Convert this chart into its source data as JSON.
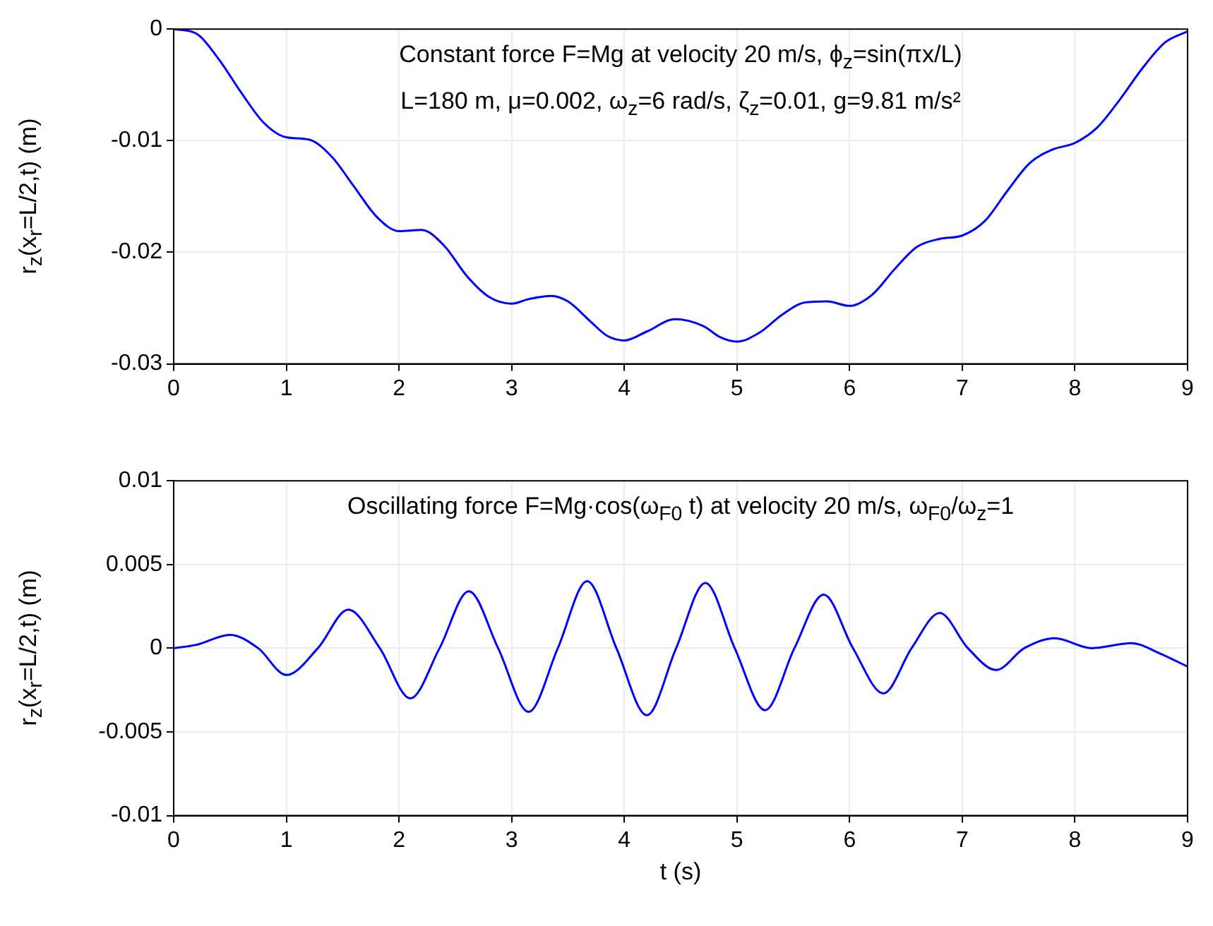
{
  "chart_data": [
    {
      "type": "line",
      "ylabel": "r$_{z}$(x$_{r}$=L/2,t) (m)",
      "annotations": [
        "Constant force F=Mg at velocity 20 m/s, ϕ$_{z}$=sin(πx/L)",
        "L=180 m, μ=0.002, ω$_{z}$=6 rad/s, ζ$_{z}$=0.01, g=9.81 m/s²"
      ],
      "xlim": [
        0,
        9
      ],
      "xticks": [
        0,
        1,
        2,
        3,
        4,
        5,
        6,
        7,
        8,
        9
      ],
      "ylim": [
        -0.03,
        0
      ],
      "yticks": [
        -0.03,
        -0.02,
        -0.01,
        0
      ],
      "grid": true,
      "series": [
        {
          "color": "#0000ff",
          "x": [
            0,
            0.2,
            0.4,
            0.6,
            0.8,
            1.0,
            1.2,
            1.4,
            1.6,
            1.8,
            2.0,
            2.2,
            2.4,
            2.6,
            2.8,
            3.0,
            3.15,
            3.35,
            3.5,
            3.7,
            3.85,
            4.0,
            4.2,
            4.45,
            4.7,
            4.85,
            5.0,
            5.2,
            5.4,
            5.6,
            5.8,
            6.0,
            6.2,
            6.4,
            6.6,
            6.8,
            7.0,
            7.2,
            7.4,
            7.6,
            7.8,
            8.0,
            8.2,
            8.4,
            8.6,
            8.8,
            9.0
          ],
          "values": [
            0,
            -0.0004,
            -0.0027,
            -0.0057,
            -0.0084,
            -0.0097,
            -0.0099,
            -0.0114,
            -0.0141,
            -0.0168,
            -0.0181,
            -0.018,
            -0.0194,
            -0.0221,
            -0.024,
            -0.0246,
            -0.0242,
            -0.0239,
            -0.0244,
            -0.0262,
            -0.0275,
            -0.0279,
            -0.0271,
            -0.026,
            -0.0266,
            -0.0276,
            -0.028,
            -0.0272,
            -0.0256,
            -0.0245,
            -0.0244,
            -0.0248,
            -0.0238,
            -0.0215,
            -0.0195,
            -0.0188,
            -0.0185,
            -0.0172,
            -0.0145,
            -0.012,
            -0.0108,
            -0.0102,
            -0.0088,
            -0.0063,
            -0.0035,
            -0.0012,
            -0.0002
          ]
        }
      ]
    },
    {
      "type": "line",
      "xlabel": "t (s)",
      "ylabel": "r$_{z}$(x$_{r}$=L/2,t) (m)",
      "annotations": [
        "Oscillating force F=Mg·cos(ω$_{F0}$ t) at velocity 20 m/s, ω$_{F0}$/ω$_{z}$=1"
      ],
      "xlim": [
        0,
        9
      ],
      "xticks": [
        0,
        1,
        2,
        3,
        4,
        5,
        6,
        7,
        8,
        9
      ],
      "ylim": [
        -0.01,
        0.01
      ],
      "yticks": [
        -0.01,
        -0.005,
        0,
        0.005,
        0.01
      ],
      "grid": true,
      "series": [
        {
          "color": "#0000ff",
          "x": [
            0,
            0.2,
            0.5,
            0.75,
            1.0,
            1.28,
            1.55,
            1.83,
            2.1,
            2.36,
            2.62,
            2.88,
            3.15,
            3.41,
            3.67,
            3.93,
            4.2,
            4.46,
            4.72,
            4.98,
            5.25,
            5.51,
            5.77,
            6.03,
            6.3,
            6.55,
            6.8,
            7.05,
            7.3,
            7.55,
            7.82,
            8.15,
            8.5,
            8.75,
            9.0
          ],
          "values": [
            0,
            0.0002,
            0.0008,
            0,
            -0.0016,
            0,
            0.0023,
            0,
            -0.003,
            0,
            0.0034,
            0,
            -0.0038,
            0,
            0.004,
            0,
            -0.004,
            0,
            0.0039,
            0,
            -0.0037,
            0,
            0.0032,
            0,
            -0.0027,
            0,
            0.0021,
            0,
            -0.0013,
            0,
            0.0006,
            0,
            0.0003,
            -0.0003,
            -0.0011
          ]
        }
      ]
    }
  ]
}
